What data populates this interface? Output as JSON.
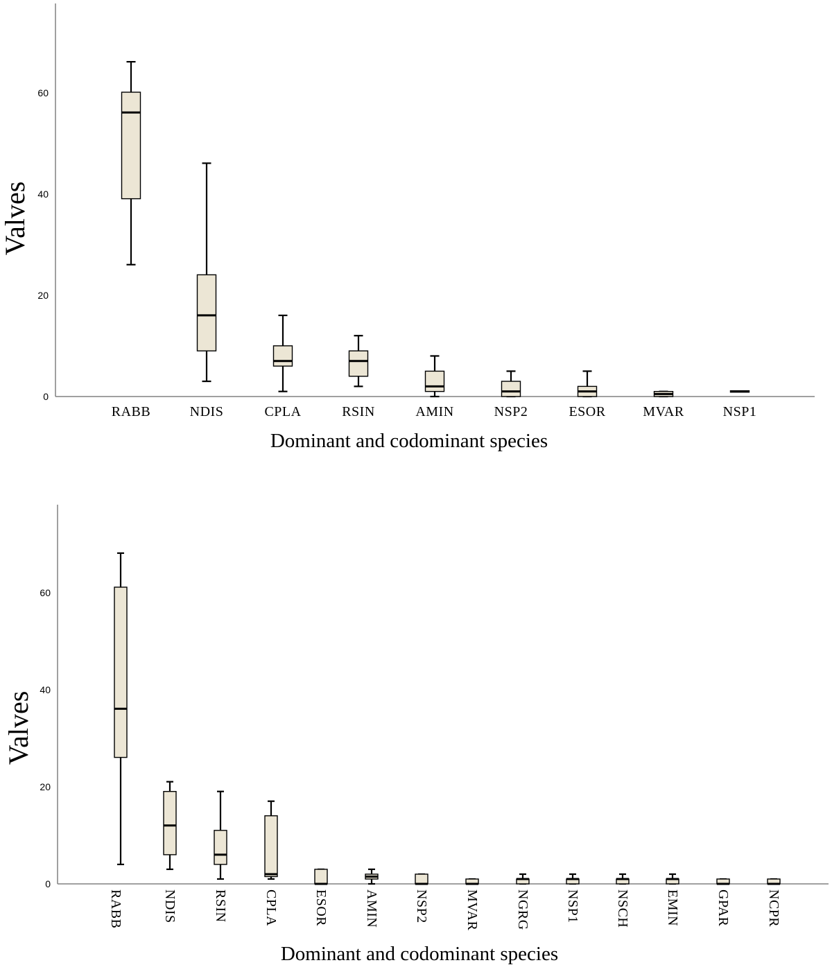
{
  "chart_data": [
    {
      "type": "boxplot",
      "xlabel": "Dominant and codominant species",
      "ylabel": "Valves",
      "yticks": [
        0,
        20,
        40,
        60
      ],
      "ylim": [
        0,
        78
      ],
      "grid": false,
      "box_fill": "#ece6d5",
      "stroke": "#000000",
      "axis_color": "#808080",
      "categories": [
        "RABB",
        "NDIS",
        "CPLA",
        "RSIN",
        "AMIN",
        "NSP2",
        "ESOR",
        "MVAR",
        "NSP1"
      ],
      "boxes": [
        {
          "min": 26,
          "q1": 39,
          "median": 56,
          "q3": 60,
          "max": 66
        },
        {
          "min": 3,
          "q1": 9,
          "median": 16,
          "q3": 24,
          "max": 46
        },
        {
          "min": 1,
          "q1": 6,
          "median": 7,
          "q3": 10,
          "max": 16
        },
        {
          "min": 2,
          "q1": 4,
          "median": 7,
          "q3": 9,
          "max": 12
        },
        {
          "min": 0,
          "q1": 1,
          "median": 2,
          "q3": 5,
          "max": 8
        },
        {
          "min": 0,
          "q1": 0,
          "median": 1,
          "q3": 3,
          "max": 5
        },
        {
          "min": 0,
          "q1": 0,
          "median": 1,
          "q3": 2,
          "max": 5
        },
        {
          "min": 0,
          "q1": 0,
          "median": 0.5,
          "q3": 1,
          "max": 1
        },
        {
          "min": 1,
          "q1": 1,
          "median": 1,
          "q3": 1,
          "max": 1
        }
      ]
    },
    {
      "type": "boxplot",
      "xlabel": "Dominant and codominant species",
      "ylabel": "Valves",
      "yticks": [
        0,
        20,
        40,
        60
      ],
      "ylim": [
        0,
        78
      ],
      "grid": false,
      "box_fill": "#ece6d5",
      "stroke": "#000000",
      "axis_color": "#808080",
      "tick_rotation": 90,
      "categories": [
        "RABB",
        "NDIS",
        "RSIN",
        "CPLA",
        "ESOR",
        "AMIN",
        "NSP2",
        "MVAR",
        "NGRG",
        "NSP1",
        "NSCH",
        "EMIN",
        "GPAR",
        "NCPR"
      ],
      "boxes": [
        {
          "min": 4,
          "q1": 26,
          "median": 36,
          "q3": 61,
          "max": 68
        },
        {
          "min": 3,
          "q1": 6,
          "median": 12,
          "q3": 19,
          "max": 21
        },
        {
          "min": 1,
          "q1": 4,
          "median": 6,
          "q3": 11,
          "max": 19
        },
        {
          "min": 1,
          "q1": 1.5,
          "median": 2,
          "q3": 14,
          "max": 17
        },
        {
          "min": 0,
          "q1": 0,
          "median": 0,
          "q3": 3,
          "max": 3
        },
        {
          "min": 0,
          "q1": 1,
          "median": 1.5,
          "q3": 2,
          "max": 3
        },
        {
          "min": 0,
          "q1": 0,
          "median": 0,
          "q3": 2,
          "max": 2
        },
        {
          "min": 0,
          "q1": 0,
          "median": 0,
          "q3": 1,
          "max": 1
        },
        {
          "min": 0,
          "q1": 0,
          "median": 1,
          "q3": 1,
          "max": 2
        },
        {
          "min": 0,
          "q1": 0,
          "median": 1,
          "q3": 1,
          "max": 2
        },
        {
          "min": 0,
          "q1": 0,
          "median": 1,
          "q3": 1,
          "max": 2
        },
        {
          "min": 0,
          "q1": 0,
          "median": 1,
          "q3": 1,
          "max": 2
        },
        {
          "min": 0,
          "q1": 0,
          "median": 0,
          "q3": 1,
          "max": 1
        },
        {
          "min": 0,
          "q1": 0,
          "median": 0,
          "q3": 1,
          "max": 1
        }
      ]
    }
  ]
}
